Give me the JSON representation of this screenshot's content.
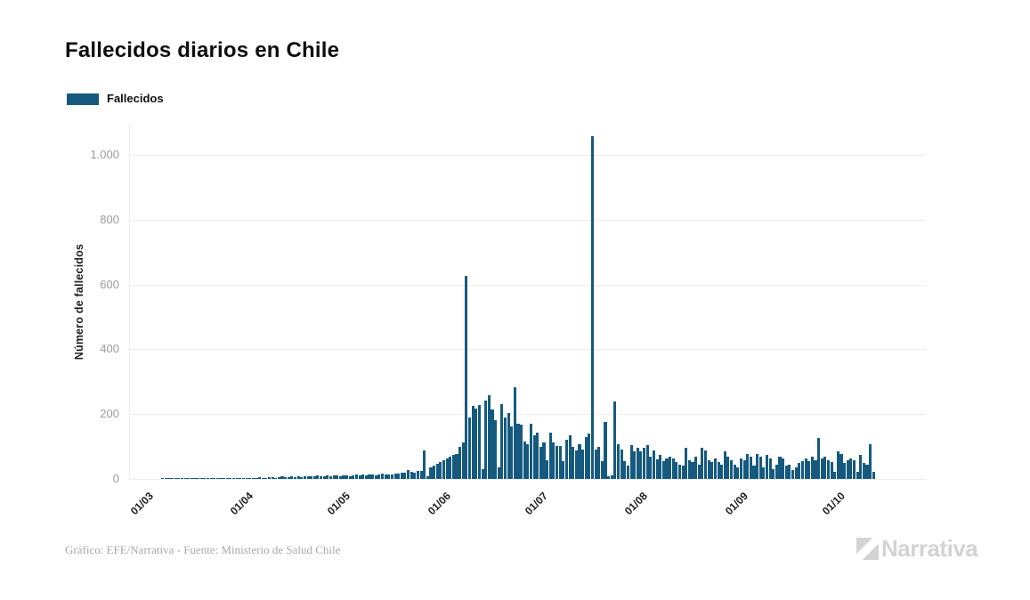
{
  "header": {
    "title": "Fallecidos diarios en Chile"
  },
  "legend": {
    "label": "Fallecidos",
    "swatch_color": "#155A7E"
  },
  "chart_data": {
    "type": "bar",
    "title": "Fallecidos diarios en Chile",
    "xlabel": "",
    "ylabel": "Número de fallecidos",
    "legend_position": "top-left",
    "grid": "horizontal",
    "bar_color": "#155A7E",
    "gridline_color": "#ececec",
    "ylim": [
      0,
      1093
    ],
    "y_ticks": [
      {
        "value": 0,
        "label": "0"
      },
      {
        "value": 200,
        "label": "200"
      },
      {
        "value": 400,
        "label": "400"
      },
      {
        "value": 600,
        "label": "600"
      },
      {
        "value": 800,
        "label": "800"
      },
      {
        "value": 1000,
        "label": "1.000"
      }
    ],
    "x_ticks": [
      {
        "label": "01/03",
        "day_index": 0
      },
      {
        "label": "01/04",
        "day_index": 31
      },
      {
        "label": "01/05",
        "day_index": 61
      },
      {
        "label": "01/06",
        "day_index": 92
      },
      {
        "label": "01/07",
        "day_index": 122
      },
      {
        "label": "01/08",
        "day_index": 153
      },
      {
        "label": "01/09",
        "day_index": 184
      },
      {
        "label": "01/10",
        "day_index": 214
      }
    ],
    "series_name": "Fallecidos",
    "x_start_label": "01/03",
    "notable_values": {
      "june_spike": 627,
      "july_spike": 1057
    },
    "values": [
      0,
      0,
      0,
      0,
      0,
      1,
      1,
      1,
      1,
      1,
      1,
      1,
      1,
      1,
      1,
      1,
      1,
      1,
      1,
      1,
      2,
      2,
      2,
      1,
      2,
      2,
      3,
      2,
      2,
      3,
      4,
      3,
      2,
      4,
      3,
      5,
      4,
      3,
      5,
      6,
      4,
      5,
      7,
      5,
      6,
      8,
      6,
      7,
      5,
      8,
      9,
      7,
      8,
      10,
      9,
      8,
      10,
      9,
      11,
      10,
      9,
      10,
      12,
      9,
      11,
      13,
      12,
      14,
      11,
      13,
      15,
      12,
      14,
      16,
      13,
      15,
      14,
      17,
      16,
      19,
      19,
      28,
      23,
      19,
      24,
      26,
      89,
      8,
      37,
      42,
      47,
      52,
      57,
      64,
      70,
      73,
      78,
      98,
      112,
      627,
      190,
      224,
      218,
      227,
      30,
      241,
      257,
      213,
      181,
      35,
      232,
      190,
      204,
      162,
      283,
      171,
      168,
      115,
      106,
      171,
      134,
      143,
      98,
      112,
      59,
      143,
      112,
      101,
      101,
      56,
      120,
      134,
      98,
      88,
      108,
      92,
      130,
      140,
      1057,
      92,
      98,
      56,
      176,
      8,
      10,
      240,
      106,
      92,
      56,
      42,
      105,
      84,
      95,
      84,
      95,
      103,
      70,
      88,
      60,
      75,
      56,
      64,
      70,
      64,
      53,
      45,
      42,
      95,
      59,
      53,
      70,
      45,
      95,
      87,
      59,
      53,
      64,
      53,
      45,
      84,
      70,
      57,
      45,
      36,
      64,
      57,
      78,
      70,
      42,
      78,
      70,
      36,
      73,
      64,
      31,
      45,
      70,
      64,
      42,
      45,
      28,
      36,
      50,
      56,
      64,
      56,
      70,
      59,
      126,
      64,
      70,
      59,
      53,
      22,
      84,
      78,
      50,
      59,
      64,
      59,
      22,
      73,
      50,
      45,
      106,
      22
    ]
  },
  "footer": {
    "credit": "Gráfico: EFE/Narrativa - Fuente: Ministerio de Salud Chile",
    "logo_text": "Narrativa",
    "logo_icon": "narrativa-n-mark"
  }
}
